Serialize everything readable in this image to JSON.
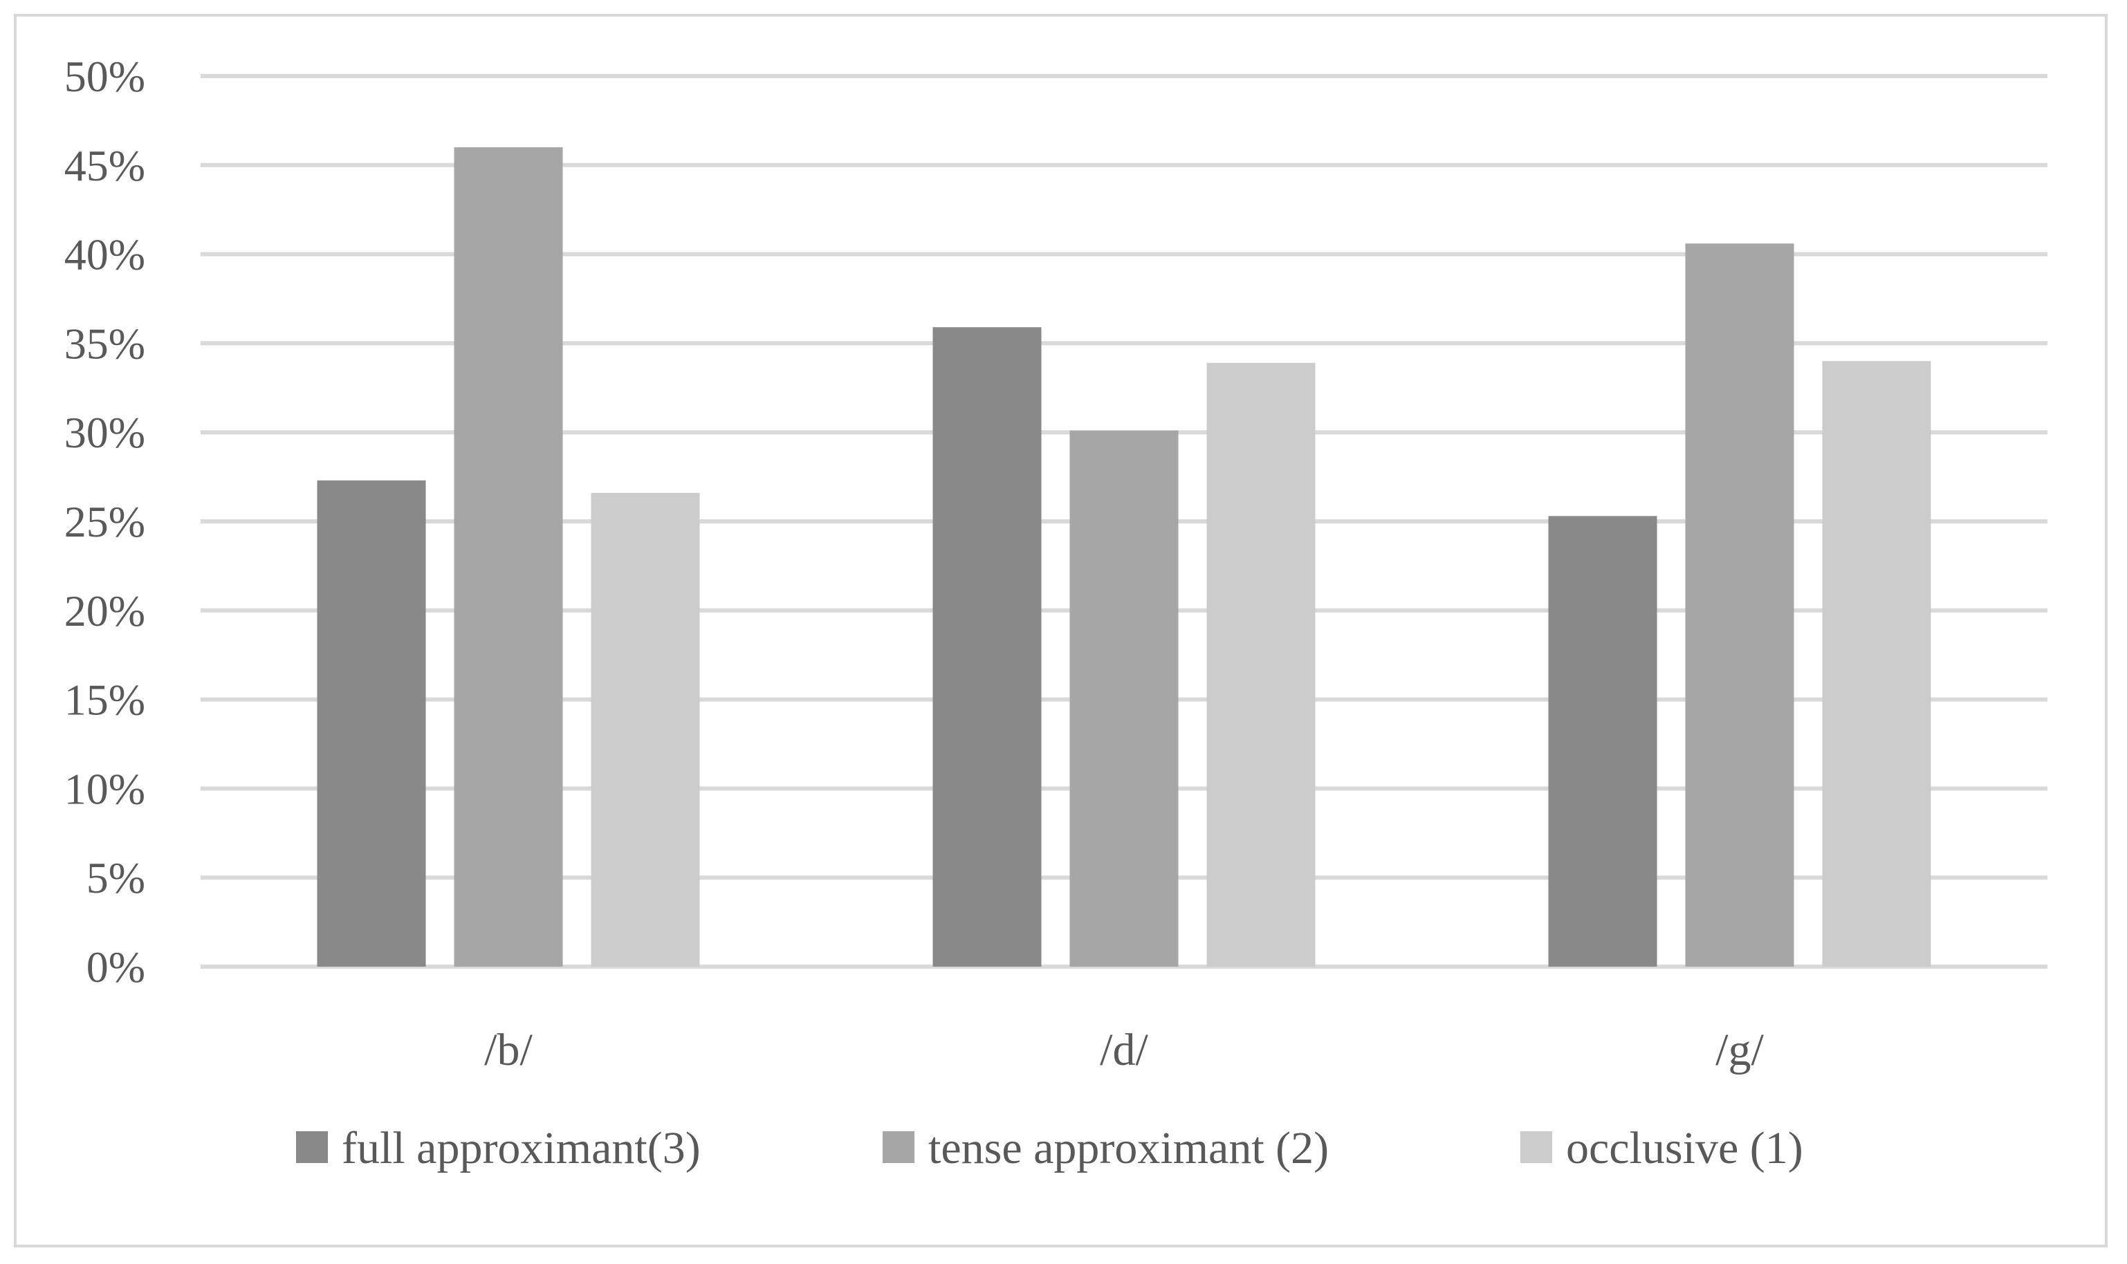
{
  "chart_data": {
    "type": "bar",
    "categories": [
      "/b/",
      "/d/",
      "/g/"
    ],
    "series": [
      {
        "name": "full approximant(3)",
        "values": [
          27.3,
          35.9,
          25.3
        ],
        "color": "#898989"
      },
      {
        "name": "tense approximant (2)",
        "values": [
          46.0,
          30.1,
          40.6
        ],
        "color": "#a6a6a6"
      },
      {
        "name": "occlusive (1)",
        "values": [
          26.6,
          33.9,
          34.0
        ],
        "color": "#cccccc"
      }
    ],
    "yticks": [
      "0%",
      "5%",
      "10%",
      "15%",
      "20%",
      "25%",
      "30%",
      "35%",
      "40%",
      "45%",
      "50%"
    ],
    "ylim": [
      0,
      50
    ],
    "grid": true,
    "gridColor": "#d9d9d9",
    "legend": "bottom",
    "title": "",
    "xlabel": "",
    "ylabel": ""
  }
}
